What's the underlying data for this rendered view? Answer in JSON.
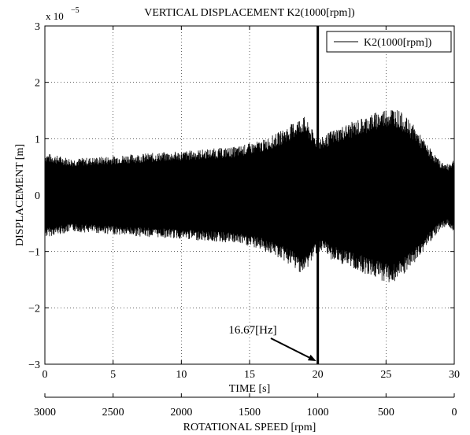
{
  "chart_data": {
    "type": "line",
    "title": "VERTICAL DISPLACEMENT K2(1000[rpm])",
    "xlabel": "TIME [s]",
    "ylabel": "DISPLACEMENT [m]",
    "secondary_xlabel": "ROTATIONAL SPEED [rpm]",
    "xlim": [
      0,
      30
    ],
    "ylim": [
      -3,
      3
    ],
    "y_multiplier": "x 10",
    "y_multiplier_exponent": "−5",
    "x_ticks": [
      0,
      5,
      10,
      15,
      20,
      25,
      30
    ],
    "x_tick_labels": [
      "0",
      "5",
      "10",
      "15",
      "20",
      "25",
      "30"
    ],
    "y_ticks": [
      -3,
      -2,
      -1,
      0,
      1,
      2,
      3
    ],
    "y_tick_labels": [
      "−3",
      "−2",
      "−1",
      "0",
      "1",
      "2",
      "3"
    ],
    "secondary_x_ticks": [
      0,
      5,
      10,
      15,
      20,
      25,
      30
    ],
    "secondary_x_tick_labels": [
      "3000",
      "2500",
      "2000",
      "1500",
      "1000",
      "500",
      "0"
    ],
    "grid": true,
    "legend_position": "top-right",
    "series": [
      {
        "name": "K2(1000[rpm])",
        "color": "#000000",
        "envelope_time": [
          0,
          2,
          4,
          6,
          8,
          10,
          12,
          14,
          16,
          17,
          18,
          18.5,
          19,
          19.5,
          20,
          20.5,
          21,
          22,
          23,
          24,
          25,
          25.5,
          26,
          27,
          28,
          29,
          29.5,
          30
        ],
        "envelope_upper": [
          0.75,
          0.65,
          0.68,
          0.72,
          0.75,
          0.78,
          0.82,
          0.86,
          0.98,
          1.1,
          1.25,
          1.35,
          1.4,
          1.2,
          1.0,
          1.05,
          1.15,
          1.25,
          1.35,
          1.45,
          1.55,
          1.57,
          1.5,
          1.25,
          0.9,
          0.6,
          0.55,
          0.65
        ],
        "envelope_lower": [
          -0.75,
          -0.65,
          -0.68,
          -0.72,
          -0.75,
          -0.78,
          -0.82,
          -0.86,
          -0.98,
          -1.1,
          -1.25,
          -1.35,
          -1.4,
          -1.2,
          -1.0,
          -1.05,
          -1.15,
          -1.25,
          -1.35,
          -1.45,
          -1.55,
          -1.57,
          -1.5,
          -1.25,
          -0.9,
          -0.6,
          -0.55,
          -0.65
        ]
      }
    ],
    "annotations": [
      {
        "text": "16.67[Hz]",
        "arrow_target_x": 20,
        "arrow_target_y": -3
      }
    ],
    "vertical_line_x": 20
  }
}
